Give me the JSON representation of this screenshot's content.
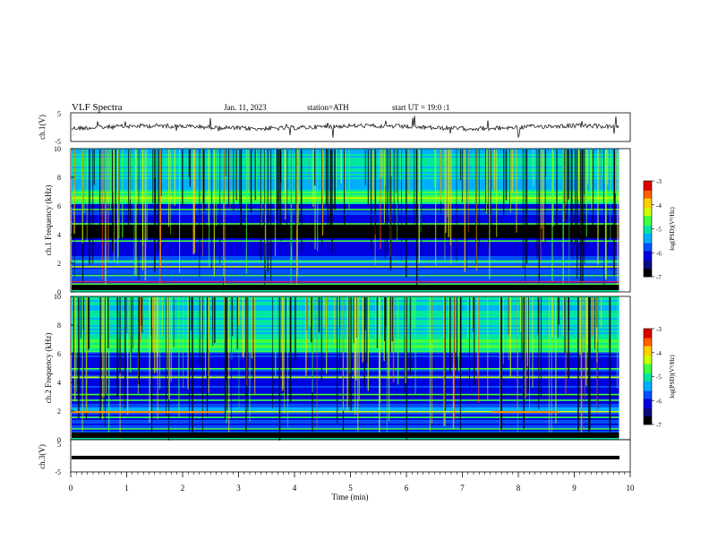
{
  "header": {
    "title": "VLF Spectra",
    "date": "Jan. 11, 2023",
    "station": "station=ATH",
    "start": "start UT = 19:0 :1"
  },
  "chart_data": [
    {
      "type": "line",
      "panel": "ch1-waveform",
      "ylabel": "ch.1(V)",
      "yticks": [
        "5",
        "-5"
      ],
      "ylim": [
        -5,
        5
      ],
      "xlim": [
        0,
        10
      ],
      "series_summary": "noisy waveform centred near 0 V with spikes, data ending near 9.8 min"
    },
    {
      "type": "heatmap",
      "panel": "ch1-spectrogram",
      "ylabel": "ch.1 Frequency (kHz)",
      "yticks": [
        "0",
        "2",
        "4",
        "6",
        "8",
        "10"
      ],
      "ylim": [
        0,
        10
      ],
      "xlim": [
        0,
        10
      ],
      "colorbar": {
        "label": "log(PSD)(V²/Hz)",
        "ticks": [
          "-3",
          "-4",
          "-5",
          "-6",
          "-7"
        ],
        "range": [
          -7,
          -3
        ]
      }
    },
    {
      "type": "heatmap",
      "panel": "ch2-spectrogram",
      "ylabel": "ch.2 Frequency (kHz)",
      "yticks": [
        "0",
        "2",
        "4",
        "6",
        "8",
        "10"
      ],
      "ylim": [
        0,
        10
      ],
      "xlim": [
        0,
        10
      ],
      "colorbar": {
        "label": "log(PSD)(V²/Hz)",
        "ticks": [
          "-3",
          "-4",
          "-5",
          "-6",
          "-7"
        ],
        "range": [
          -7,
          -3
        ]
      }
    },
    {
      "type": "line",
      "panel": "ch3-waveform",
      "ylabel": "ch.3(V)",
      "yticks": [
        "5",
        "-5"
      ],
      "ylim": [
        -5,
        5
      ],
      "xlim": [
        0,
        10
      ],
      "series_summary": "flat trace near -1.5 V"
    }
  ],
  "xaxis": {
    "label": "Time (min)",
    "ticks": [
      "0",
      "1",
      "2",
      "3",
      "4",
      "5",
      "6",
      "7",
      "8",
      "9",
      "10"
    ]
  },
  "colors": {
    "cmap": [
      "#000000",
      "#0a0a80",
      "#0000e0",
      "#0050ff",
      "#00b0ff",
      "#00e8a0",
      "#40ff40",
      "#d0ff00",
      "#ffd000",
      "#ff6000",
      "#e00000",
      "#ffffff"
    ]
  }
}
